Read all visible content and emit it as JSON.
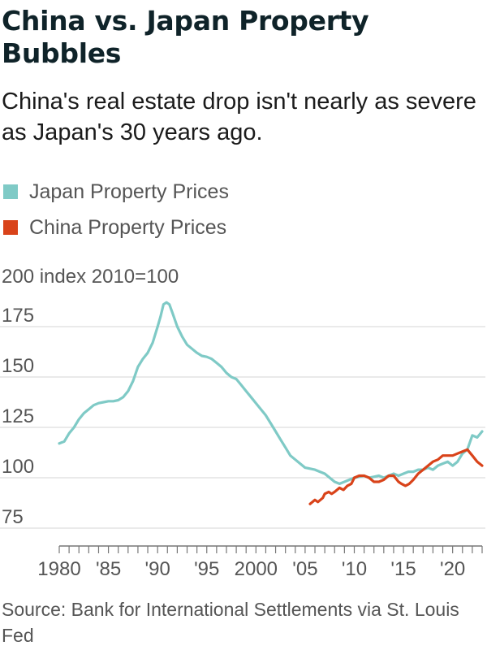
{
  "title": "China vs. Japan Property Bubbles",
  "subtitle": "China's real estate drop isn't nearly as severe as Japan's 30 years ago.",
  "source": "Source: Bank for International Settlements via St. Louis Fed",
  "chart_data": {
    "type": "line",
    "ylabel": "index 2010=100",
    "ylim": [
      70,
      200
    ],
    "y_ticks": [
      75,
      100,
      125,
      150,
      175,
      200
    ],
    "xlim": [
      1980,
      2023
    ],
    "x_ticks": [
      {
        "value": 1980,
        "label": "1980"
      },
      {
        "value": 1985,
        "label": "'85"
      },
      {
        "value": 1990,
        "label": "'90"
      },
      {
        "value": 1995,
        "label": "'95"
      },
      {
        "value": 2000,
        "label": "2000"
      },
      {
        "value": 2005,
        "label": "'05"
      },
      {
        "value": 2010,
        "label": "'10"
      },
      {
        "value": 2015,
        "label": "'15"
      },
      {
        "value": 2020,
        "label": "'20"
      }
    ],
    "grid": true,
    "legend_position": "top-left",
    "series": [
      {
        "name": "Japan Property Prices",
        "color": "#7fcac6",
        "points": [
          [
            1980.0,
            117
          ],
          [
            1980.5,
            118
          ],
          [
            1981.0,
            122
          ],
          [
            1981.5,
            125
          ],
          [
            1982.0,
            129
          ],
          [
            1982.5,
            132
          ],
          [
            1983.0,
            134
          ],
          [
            1983.5,
            136
          ],
          [
            1984.0,
            137
          ],
          [
            1984.5,
            137.5
          ],
          [
            1985.0,
            138
          ],
          [
            1985.5,
            138
          ],
          [
            1986.0,
            138.5
          ],
          [
            1986.5,
            140
          ],
          [
            1987.0,
            143
          ],
          [
            1987.5,
            148
          ],
          [
            1988.0,
            155
          ],
          [
            1988.5,
            159
          ],
          [
            1989.0,
            162
          ],
          [
            1989.5,
            167
          ],
          [
            1990.0,
            175
          ],
          [
            1990.3,
            180
          ],
          [
            1990.6,
            186
          ],
          [
            1990.9,
            187
          ],
          [
            1991.2,
            186
          ],
          [
            1991.5,
            182
          ],
          [
            1992.0,
            175
          ],
          [
            1992.5,
            170
          ],
          [
            1993.0,
            166
          ],
          [
            1993.5,
            164
          ],
          [
            1994.0,
            162
          ],
          [
            1994.5,
            160.5
          ],
          [
            1995.0,
            160
          ],
          [
            1995.5,
            159
          ],
          [
            1996.0,
            157
          ],
          [
            1996.5,
            155
          ],
          [
            1997.0,
            152
          ],
          [
            1997.5,
            150
          ],
          [
            1998.0,
            149
          ],
          [
            1998.5,
            146
          ],
          [
            1999.0,
            143
          ],
          [
            1999.5,
            140
          ],
          [
            2000.0,
            137
          ],
          [
            2000.5,
            134
          ],
          [
            2001.0,
            131
          ],
          [
            2001.5,
            127
          ],
          [
            2002.0,
            123
          ],
          [
            2002.5,
            119
          ],
          [
            2003.0,
            115
          ],
          [
            2003.5,
            111
          ],
          [
            2004.0,
            109
          ],
          [
            2004.5,
            107
          ],
          [
            2005.0,
            105
          ],
          [
            2005.5,
            104.5
          ],
          [
            2006.0,
            104
          ],
          [
            2006.5,
            103
          ],
          [
            2007.0,
            102
          ],
          [
            2007.5,
            100
          ],
          [
            2008.0,
            98
          ],
          [
            2008.5,
            97
          ],
          [
            2009.0,
            98
          ],
          [
            2009.5,
            99
          ],
          [
            2010.0,
            100
          ],
          [
            2010.5,
            100.5
          ],
          [
            2011.0,
            101
          ],
          [
            2011.5,
            100
          ],
          [
            2012.0,
            100.5
          ],
          [
            2012.5,
            101
          ],
          [
            2013.0,
            100
          ],
          [
            2013.5,
            101
          ],
          [
            2014.0,
            102
          ],
          [
            2014.5,
            101
          ],
          [
            2015.0,
            102
          ],
          [
            2015.5,
            103
          ],
          [
            2016.0,
            103
          ],
          [
            2016.5,
            104
          ],
          [
            2017.0,
            104
          ],
          [
            2017.5,
            105
          ],
          [
            2018.0,
            104
          ],
          [
            2018.5,
            106
          ],
          [
            2019.0,
            107
          ],
          [
            2019.5,
            108
          ],
          [
            2020.0,
            106
          ],
          [
            2020.5,
            108
          ],
          [
            2021.0,
            112
          ],
          [
            2021.5,
            114
          ],
          [
            2022.0,
            121
          ],
          [
            2022.5,
            120
          ],
          [
            2023.0,
            123
          ]
        ]
      },
      {
        "name": "China Property Prices",
        "color": "#d9431a",
        "points": [
          [
            2005.5,
            87
          ],
          [
            2006.0,
            89
          ],
          [
            2006.3,
            88
          ],
          [
            2006.8,
            90
          ],
          [
            2007.0,
            92
          ],
          [
            2007.4,
            93
          ],
          [
            2007.7,
            92
          ],
          [
            2008.0,
            93
          ],
          [
            2008.5,
            95
          ],
          [
            2008.9,
            94
          ],
          [
            2009.3,
            96
          ],
          [
            2009.7,
            97
          ],
          [
            2010.0,
            100
          ],
          [
            2010.5,
            101
          ],
          [
            2011.0,
            101
          ],
          [
            2011.5,
            100
          ],
          [
            2012.0,
            98
          ],
          [
            2012.5,
            98
          ],
          [
            2013.0,
            99
          ],
          [
            2013.5,
            101
          ],
          [
            2014.0,
            101
          ],
          [
            2014.5,
            98
          ],
          [
            2014.8,
            97
          ],
          [
            2015.2,
            96
          ],
          [
            2015.6,
            97
          ],
          [
            2016.0,
            99
          ],
          [
            2016.5,
            102
          ],
          [
            2017.0,
            104
          ],
          [
            2017.5,
            106
          ],
          [
            2018.0,
            108
          ],
          [
            2018.5,
            109
          ],
          [
            2019.0,
            111
          ],
          [
            2019.5,
            111
          ],
          [
            2020.0,
            111
          ],
          [
            2020.5,
            112
          ],
          [
            2021.0,
            113
          ],
          [
            2021.5,
            114
          ],
          [
            2022.0,
            111
          ],
          [
            2022.5,
            108
          ],
          [
            2023.0,
            106
          ]
        ]
      }
    ]
  }
}
